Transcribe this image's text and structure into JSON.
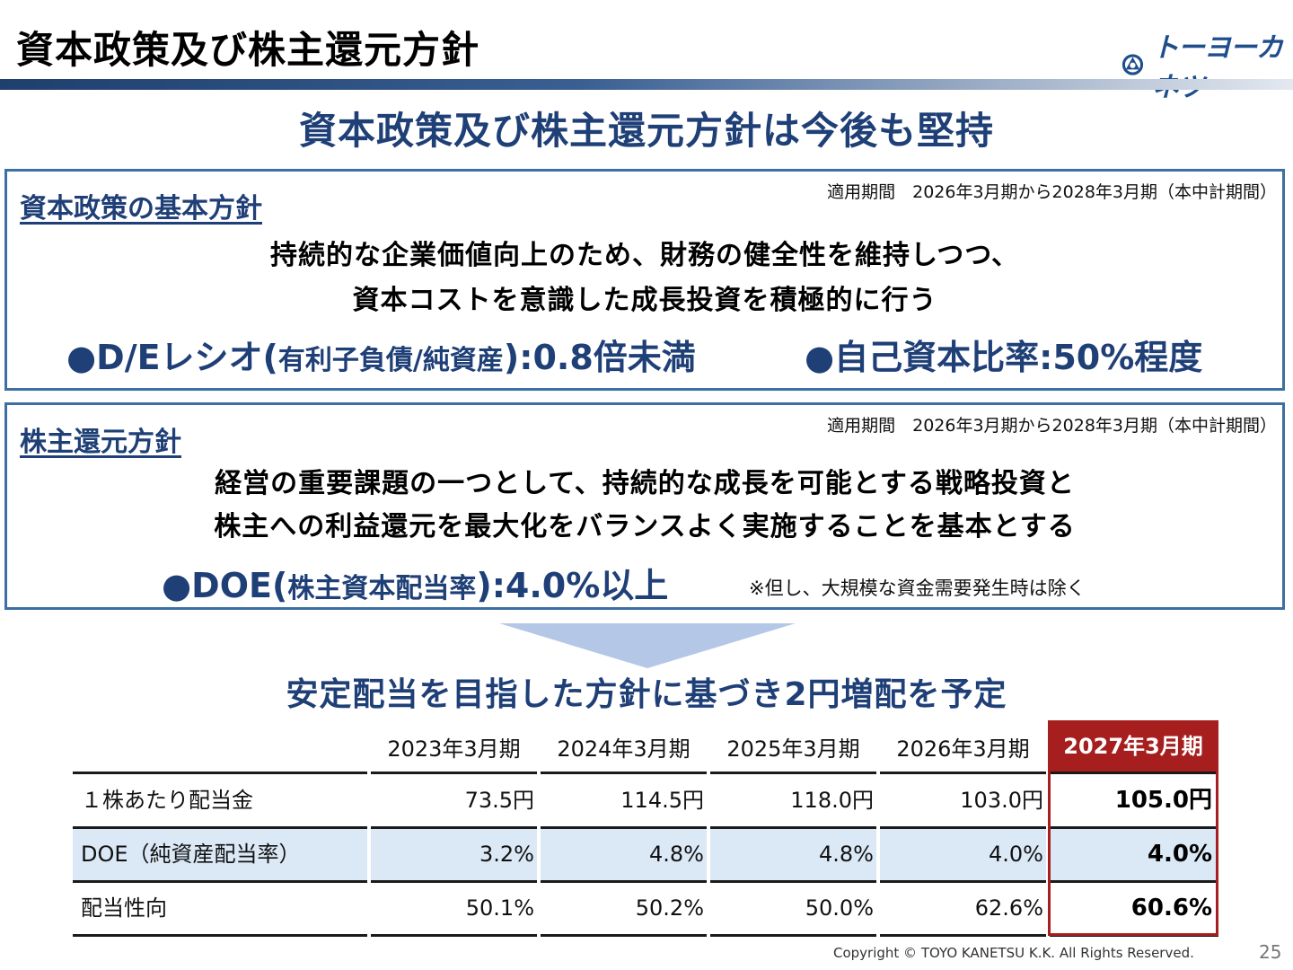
{
  "header": {
    "title": "資本政策及び株主還元方針",
    "logo_text": "トーヨーカネツ"
  },
  "main_heading": "資本政策及び株主還元方針は今後も堅持",
  "capital_policy": {
    "label": "資本政策の基本方針",
    "period": "適用期間　2026年3月期から2028年3月期（本中計期間）",
    "line1": "持続的な企業価値向上のため、財務の健全性を維持しつつ、",
    "line2": "資本コストを意識した成長投資を積極的に行う",
    "target1_a": "●D/Eレシオ(",
    "target1_b": "有利子負債/純資産",
    "target1_c": "):0.8倍未満",
    "target2_a": "●自己資本比率:50%程度"
  },
  "shareholder_policy": {
    "label": "株主還元方針",
    "period": "適用期間　2026年3月期から2028年3月期（本中計期間）",
    "line1": "経営の重要課題の一つとして、持続的な成長を可能とする戦略投資と",
    "line2": "株主への利益還元を最大化をバランスよく実施することを基本とする",
    "target_a": "●DOE(",
    "target_b": "株主資本配当率",
    "target_c": "):4.0%以上",
    "note": "※但し、大規模な資金需要発生時は除く"
  },
  "sub_heading": "安定配当を目指した方針に基づき2円増配を予定",
  "table": {
    "columns": [
      "2023年3月期",
      "2024年3月期",
      "2025年3月期",
      "2026年3月期",
      "2027年3月期"
    ],
    "rows": [
      {
        "label": "１株あたり配当金",
        "values": [
          "73.5円",
          "114.5円",
          "118.0円",
          "103.0円",
          "105.0円"
        ]
      },
      {
        "label": "DOE（純資産配当率）",
        "values": [
          "3.2%",
          "4.8%",
          "4.8%",
          "4.0%",
          "4.0%"
        ]
      },
      {
        "label": "配当性向",
        "values": [
          "50.1%",
          "50.2%",
          "50.0%",
          "62.6%",
          "60.6%"
        ]
      }
    ]
  },
  "footer": {
    "copyright": "Copyright ©  TOYO KANETSU K.K. All Rights Reserved.",
    "page": "25"
  },
  "colors": {
    "accent_navy": "#1f3f77",
    "highlight_red": "#a61e1e",
    "row_blue": "#dbe8f6",
    "box_border": "#3d6fa3"
  }
}
